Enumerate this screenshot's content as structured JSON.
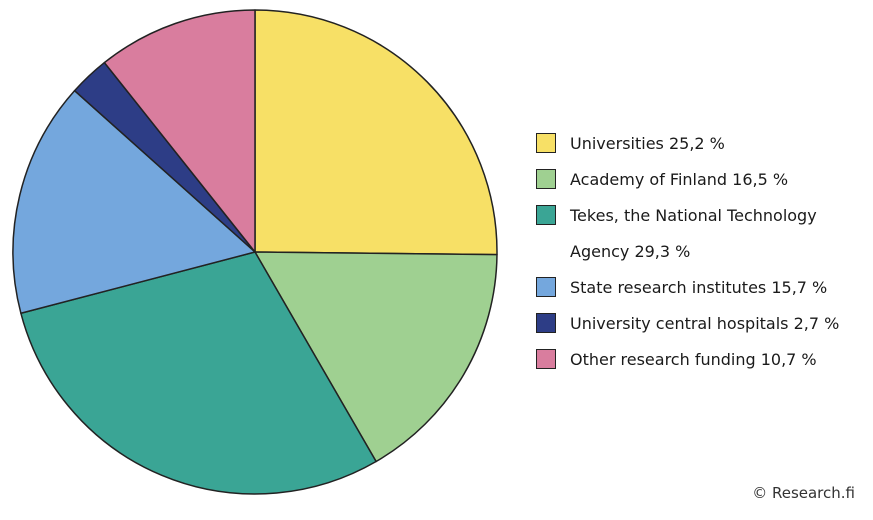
{
  "chart_data": {
    "type": "pie",
    "slices": [
      {
        "label": "Universities 25,2 %",
        "value": 25.2,
        "color": "#f7e066"
      },
      {
        "label": "Academy of Finland 16,5 %",
        "value": 16.5,
        "color": "#9fd091"
      },
      {
        "label": "Tekes, the National Technology Agency 29,3 %",
        "value": 29.3,
        "color": "#3aa595"
      },
      {
        "label": "State research institutes 15,7 %",
        "value": 15.7,
        "color": "#74a7dd"
      },
      {
        "label": "University central hospitals 2,7 %",
        "value": 2.7,
        "color": "#2d3d86"
      },
      {
        "label": "Other research funding 10,7 %",
        "value": 10.7,
        "color": "#d97d9e"
      }
    ],
    "legend_position": "right"
  },
  "credit": "© Research.fi"
}
